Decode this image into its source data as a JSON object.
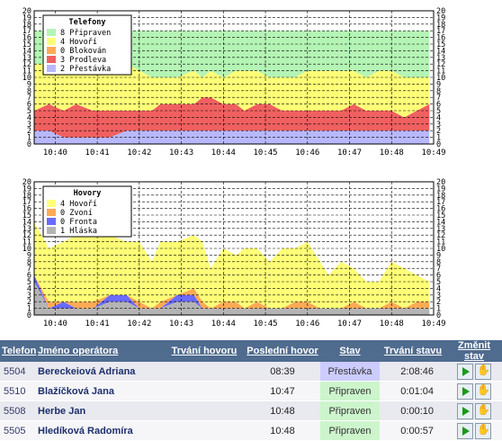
{
  "chart_data": [
    {
      "type": "area",
      "stacked": true,
      "legend_title": "Telefony",
      "ylim": [
        0,
        20
      ],
      "yticks": [
        "0",
        "1",
        "2",
        "3",
        "4",
        "5",
        "6",
        "7",
        "8",
        "9",
        "10",
        "11",
        "12",
        "13",
        "14",
        "15",
        "16",
        "17",
        "18",
        "19",
        "20"
      ],
      "xticks": [
        "10:40",
        "10:41",
        "10:42",
        "10:43",
        "10:44",
        "10:45",
        "10:46",
        "10:47",
        "10:48",
        "10:49"
      ],
      "x": [
        0.0,
        0.35,
        0.7,
        1.0,
        1.4,
        1.8,
        2.2,
        2.5,
        2.8,
        3.0,
        3.4,
        3.8,
        4.0,
        4.2,
        4.5,
        4.8,
        5.0,
        5.3,
        5.6,
        5.9,
        6.2,
        6.5,
        6.8,
        7.0,
        7.3,
        7.6,
        7.9,
        8.2,
        8.5,
        8.8,
        9.1,
        9.4
      ],
      "series": [
        {
          "name": "Přestávka",
          "count": 2,
          "color": "#b8b8ff",
          "values": [
            2,
            2,
            1,
            1,
            1,
            1,
            2,
            2,
            2,
            2,
            2,
            2,
            2,
            2,
            2,
            2,
            2,
            2,
            2,
            2,
            2,
            2,
            2,
            2,
            2,
            2,
            2,
            2,
            2,
            2,
            2,
            2
          ]
        },
        {
          "name": "Prodleva",
          "count": 3,
          "color": "#f06060",
          "values": [
            3,
            4,
            4,
            5,
            4,
            4,
            3,
            3,
            3,
            4,
            4,
            4,
            5,
            5,
            4,
            4,
            3,
            4,
            4,
            3,
            3,
            3,
            3,
            3,
            3,
            4,
            3,
            3,
            3,
            2,
            3,
            4
          ]
        },
        {
          "name": "Blokován",
          "count": 0,
          "color": "#ffaa55",
          "values": [
            0,
            0,
            0,
            0,
            0,
            0,
            0,
            0,
            0,
            0,
            0,
            0,
            0,
            0,
            0,
            0,
            0,
            0,
            0,
            0,
            0,
            0,
            0,
            0,
            0,
            0,
            0,
            0,
            0,
            0,
            0,
            0
          ]
        },
        {
          "name": "Hovoří",
          "count": 4,
          "color": "#ffff77",
          "values": [
            7,
            6,
            6,
            7,
            7,
            7,
            7,
            6,
            5,
            4,
            4,
            5,
            3,
            4,
            4,
            5,
            6,
            5,
            4,
            5,
            5,
            6,
            6,
            6,
            6,
            5,
            5,
            6,
            6,
            6,
            5,
            4
          ]
        },
        {
          "name": "Připraven",
          "count": 8,
          "color": "#b4f4b4",
          "values": [
            5,
            5,
            6,
            4,
            5,
            5,
            5,
            6,
            7,
            7,
            7,
            6,
            7,
            6,
            7,
            6,
            6,
            6,
            7,
            7,
            7,
            6,
            6,
            6,
            6,
            6,
            7,
            6,
            6,
            7,
            7,
            7
          ]
        }
      ]
    },
    {
      "type": "area",
      "stacked": true,
      "legend_title": "Hovory",
      "ylim": [
        0,
        20
      ],
      "yticks": [
        "0",
        "1",
        "2",
        "3",
        "4",
        "5",
        "6",
        "7",
        "8",
        "9",
        "10",
        "11",
        "12",
        "13",
        "14",
        "15",
        "16",
        "17",
        "18",
        "19",
        "20"
      ],
      "xticks": [
        "10:40",
        "10:41",
        "10:42",
        "10:43",
        "10:44",
        "10:45",
        "10:46",
        "10:47",
        "10:48",
        "10:49"
      ],
      "x": [
        0.0,
        0.35,
        0.7,
        1.0,
        1.4,
        1.8,
        2.2,
        2.5,
        2.8,
        3.0,
        3.4,
        3.8,
        4.0,
        4.2,
        4.5,
        4.8,
        5.0,
        5.3,
        5.6,
        5.9,
        6.2,
        6.5,
        6.8,
        7.0,
        7.3,
        7.6,
        7.9,
        8.2,
        8.5,
        8.8,
        9.1,
        9.4
      ],
      "series": [
        {
          "name": "Hláska",
          "count": 1,
          "color": "#b4b4b4",
          "values": [
            5,
            1,
            1,
            1,
            1,
            2,
            2,
            1,
            1,
            1,
            2,
            2,
            1,
            1,
            1,
            1,
            1,
            1,
            1,
            1,
            1,
            1,
            1,
            1,
            1,
            1,
            1,
            1,
            1,
            1,
            1,
            1
          ]
        },
        {
          "name": "Fronta",
          "count": 0,
          "color": "#6a6aff",
          "values": [
            1,
            0,
            1,
            0,
            0,
            1,
            1,
            0,
            0,
            0,
            1,
            1,
            0,
            0,
            0,
            0,
            0,
            0,
            0,
            0,
            0,
            0,
            0,
            0,
            0,
            0,
            0,
            0,
            0,
            0,
            0,
            0
          ]
        },
        {
          "name": "Zvoní",
          "count": 0,
          "color": "#ffaa55",
          "values": [
            0,
            1,
            0,
            1,
            1,
            0,
            0,
            1,
            0,
            1,
            0,
            1,
            1,
            0,
            1,
            1,
            0,
            1,
            0,
            0,
            1,
            1,
            0,
            0,
            0,
            1,
            0,
            0,
            1,
            0,
            1,
            1
          ]
        },
        {
          "name": "Hovoří",
          "count": 4,
          "color": "#ffff77",
          "values": [
            8,
            8,
            9,
            10,
            10,
            9,
            8,
            9,
            7,
            9,
            8,
            8,
            9,
            6,
            8,
            7,
            9,
            8,
            7,
            9,
            8,
            9,
            7,
            5,
            7,
            5,
            4,
            4,
            6,
            6,
            4,
            3
          ]
        }
      ]
    }
  ],
  "table": {
    "headers": [
      "Telefon",
      "Jméno operátora",
      "Trvání hovoru",
      "Poslední hovor",
      "Stav",
      "Trvání stavu",
      "Změnit stav"
    ],
    "rows": [
      {
        "tel": "5504",
        "name": "Bereckeiová Adriana",
        "duration": "",
        "last": "08:39",
        "state": "Přestávka",
        "state_kind": "prest",
        "state_dur": "2:08:46"
      },
      {
        "tel": "5510",
        "name": "Blažíčková Jana",
        "duration": "",
        "last": "10:47",
        "state": "Připraven",
        "state_kind": "prip",
        "state_dur": "0:01:04"
      },
      {
        "tel": "5508",
        "name": "Herbe Jan",
        "duration": "",
        "last": "10:48",
        "state": "Připraven",
        "state_kind": "prip",
        "state_dur": "0:00:10"
      },
      {
        "tel": "5505",
        "name": "Hledíková Radomíra",
        "duration": "",
        "last": "10:48",
        "state": "Připraven",
        "state_kind": "prip",
        "state_dur": "0:00:57"
      }
    ]
  }
}
